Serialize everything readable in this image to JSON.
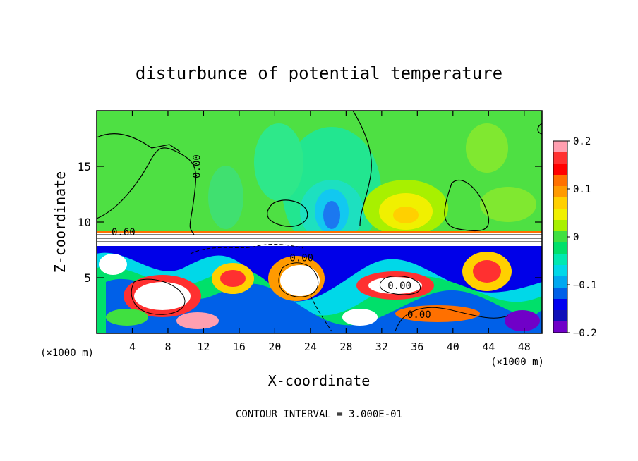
{
  "chart_data": {
    "type": "heatmap",
    "title": "disturbunce of potential temperature",
    "xlabel": "X-coordinate",
    "ylabel": "Z-coordinate",
    "x_unit_left": "(×1000 m)",
    "x_unit_right": "(×1000 m)",
    "footer": "CONTOUR INTERVAL = 3.000E-01",
    "xlim": [
      0,
      50
    ],
    "ylim": [
      0,
      20
    ],
    "x_ticks": [
      4,
      8,
      12,
      16,
      20,
      24,
      28,
      32,
      36,
      40,
      44,
      48
    ],
    "x_tick_labels": [
      "4",
      "8",
      "12",
      "16",
      "20",
      "24",
      "28",
      "32",
      "36",
      "40",
      "44",
      "48"
    ],
    "y_ticks": [
      5,
      10,
      15
    ],
    "y_tick_labels": [
      "5",
      "10",
      "15"
    ],
    "colorbar": {
      "range": [
        -0.2,
        0.2
      ],
      "ticks": [
        0.2,
        0.1,
        0,
        -0.1,
        -0.2
      ],
      "tick_labels": [
        "0.2",
        "0.1",
        "0",
        "−0.1",
        "−0.2"
      ],
      "colors": [
        "#ff9fb0",
        "#ff3030",
        "#ff0000",
        "#ff7000",
        "#ff9a00",
        "#ffd000",
        "#f0f000",
        "#a8f000",
        "#40e040",
        "#00e06a",
        "#00e8b0",
        "#00d8e8",
        "#00a8f0",
        "#0060e8",
        "#0000f0",
        "#1010b8",
        "#7000c8"
      ]
    },
    "contour_labels": [
      {
        "text": "0.00",
        "x": 11.6,
        "z": 15.0,
        "rotate": true
      },
      {
        "text": "0.60",
        "x": 3.0,
        "z": 8.8,
        "rotate": false
      },
      {
        "text": "0.00",
        "x": 23.0,
        "z": 6.5,
        "rotate": false
      },
      {
        "text": "0.00",
        "x": 34.0,
        "z": 4.0,
        "rotate": false
      },
      {
        "text": "0.00",
        "x": 36.2,
        "z": 1.4,
        "rotate": false
      }
    ]
  }
}
